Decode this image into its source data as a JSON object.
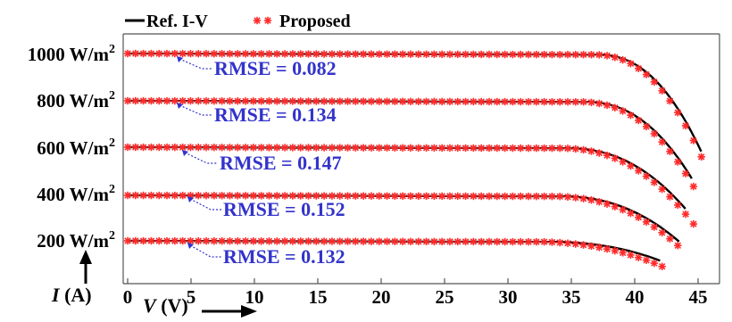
{
  "chart_data": {
    "type": "line",
    "title": "",
    "xlabel": "V (V)",
    "ylabel": "I (A)",
    "xlim": [
      0,
      47
    ],
    "x_ticks": [
      "0",
      "5",
      "10",
      "15",
      "20",
      "25",
      "30",
      "35",
      "40",
      "45"
    ],
    "grid": false,
    "legend": {
      "placement": "top-left",
      "entries": [
        "Ref. I-V",
        "Proposed"
      ]
    },
    "colors": {
      "reference": "#000000",
      "proposed": "#ff2a2a",
      "annotation": "#3333cc"
    },
    "series": [
      {
        "irradiance": "1000 W/m",
        "superscript": "2",
        "rmse": "RMSE = 0.082",
        "knee": 37,
        "voc": 45.8
      },
      {
        "irradiance": "800 W/m",
        "superscript": "2",
        "rmse": "RMSE = 0.134",
        "knee": 36,
        "voc": 45.2
      },
      {
        "irradiance": "600 W/m",
        "superscript": "2",
        "rmse": "RMSE = 0.147",
        "knee": 34.5,
        "voc": 44.7
      },
      {
        "irradiance": "400 W/m",
        "superscript": "2",
        "rmse": "RMSE = 0.152",
        "knee": 34,
        "voc": 44
      },
      {
        "irradiance": "200 W/m",
        "superscript": "2",
        "rmse": "RMSE = 0.132",
        "knee": 33,
        "voc": 42.7
      }
    ]
  }
}
